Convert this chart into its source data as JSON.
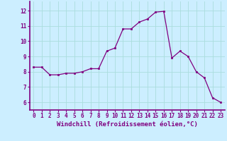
{
  "x_values": [
    0,
    1,
    2,
    3,
    4,
    5,
    6,
    7,
    8,
    9,
    10,
    11,
    12,
    13,
    14,
    15,
    16,
    17,
    18,
    19,
    20,
    21,
    22,
    23
  ],
  "y_values": [
    8.3,
    8.3,
    7.8,
    7.8,
    7.9,
    7.9,
    8.0,
    8.2,
    8.2,
    9.35,
    9.55,
    10.8,
    10.8,
    11.25,
    11.45,
    11.9,
    11.95,
    8.9,
    9.35,
    9.0,
    8.0,
    7.6,
    6.3,
    6.0
  ],
  "line_color": "#800080",
  "marker_color": "#800080",
  "bg_color": "#cceeff",
  "grid_color": "#aadddd",
  "axis_color": "#800080",
  "tick_color": "#800080",
  "xlabel": "Windchill (Refroidissement éolien,°C)",
  "xlabel_fontsize": 6.5,
  "tick_fontsize": 5.5,
  "ytick_labels": [
    6,
    7,
    8,
    9,
    10,
    11,
    12
  ],
  "ylim": [
    5.5,
    12.6
  ],
  "xlim": [
    -0.5,
    23.5
  ]
}
